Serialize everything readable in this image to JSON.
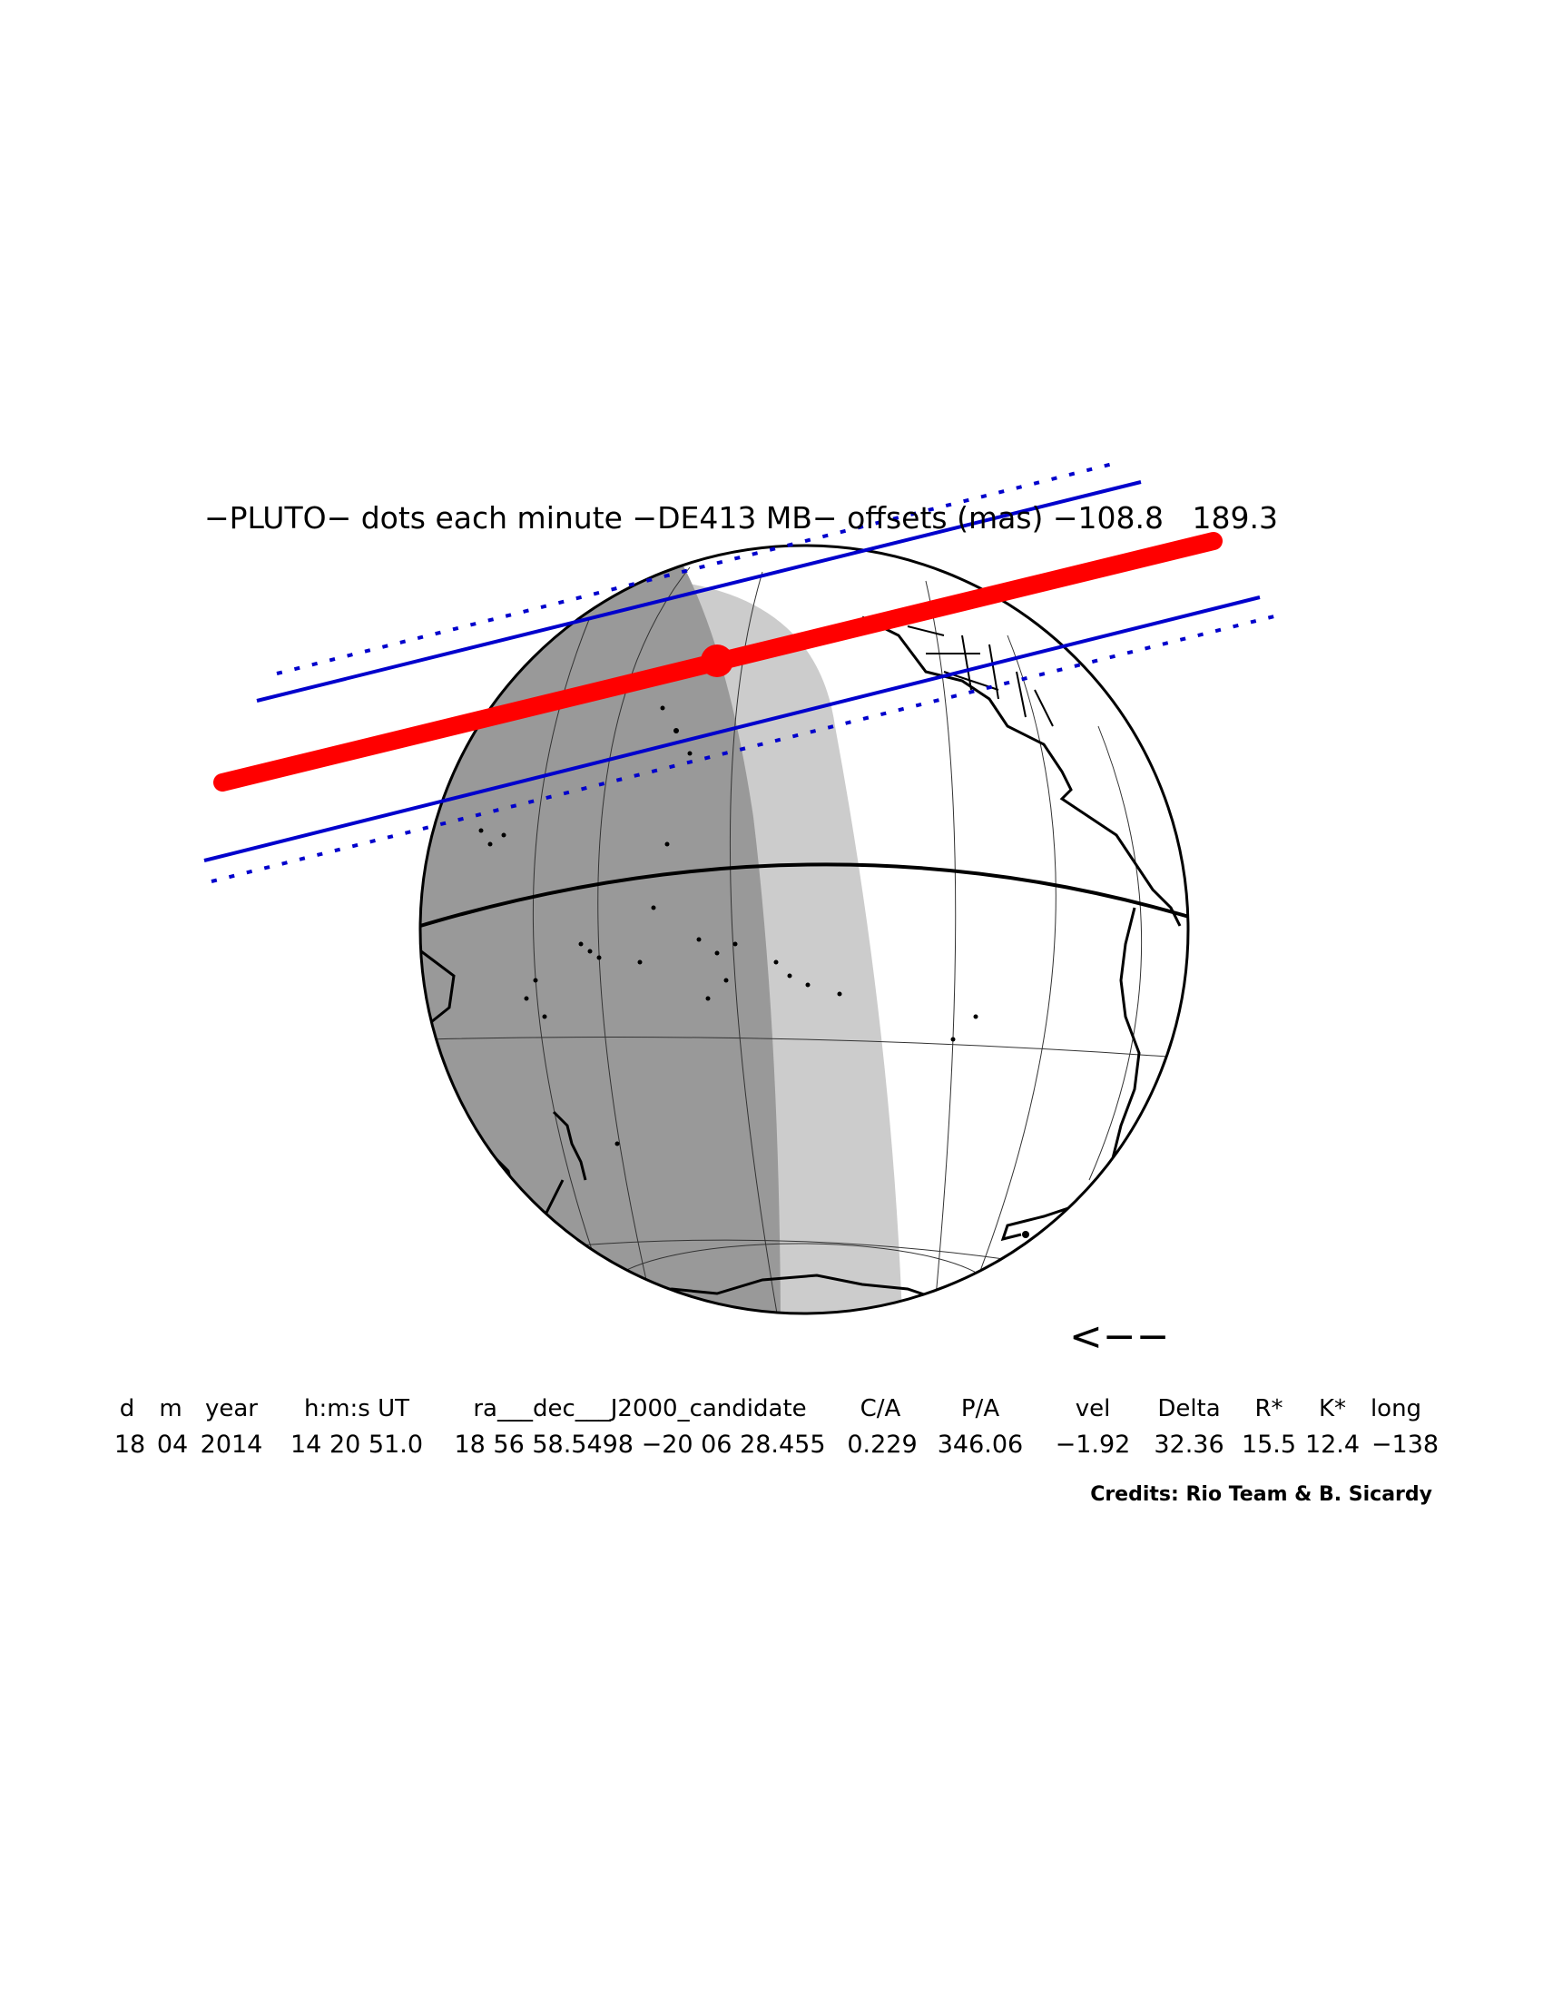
{
  "title": "−PLUTO− dots each minute −DE413 MB− offsets (mas) −108.8   189.3",
  "direction_arrow": "<−−",
  "table": {
    "headers": [
      "d",
      "m",
      "year",
      "h:m:s UT",
      "ra___dec___J2000_candidate",
      "C/A",
      "P/A",
      "vel",
      "Delta",
      "R*",
      "K*",
      "long"
    ],
    "values": [
      "18",
      "04",
      "2014",
      "14 20 51.0",
      "18 56 58.5498 −20 06 28.455",
      "0.229",
      "346.06",
      "−1.92",
      "32.36",
      "15.5",
      "12.4",
      "−138"
    ]
  },
  "credits": "Credits: Rio Team & B. Sicardy",
  "colors": {
    "centerline": "#ff0000",
    "shadow_limits": "#0000cc",
    "night": "#999999",
    "twilight": "#cccccc",
    "day": "#ffffff",
    "coastlines": "#000000"
  }
}
